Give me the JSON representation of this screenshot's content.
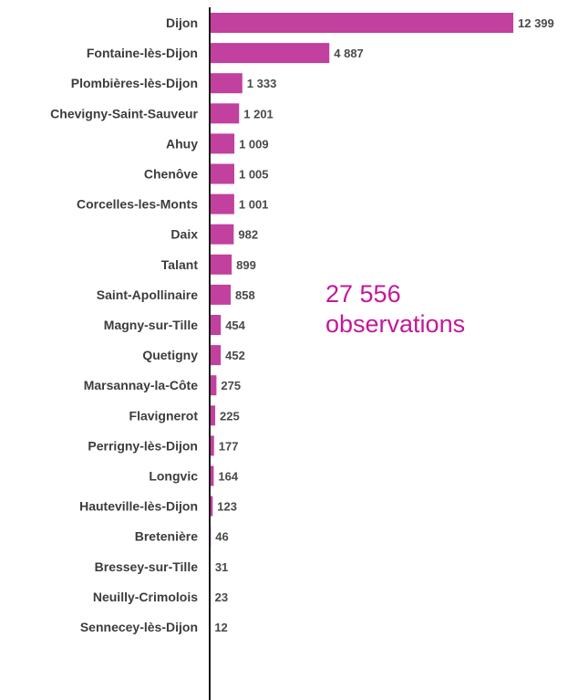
{
  "chart_data": {
    "type": "bar",
    "orientation": "horizontal",
    "categories": [
      "Dijon",
      "Fontaine-lès-Dijon",
      "Plombières-lès-Dijon",
      "Chevigny-Saint-Sauveur",
      "Ahuy",
      "Chenôve",
      "Corcelles-les-Monts",
      "Daix",
      "Talant",
      "Saint-Apollinaire",
      "Magny-sur-Tille",
      "Quetigny",
      "Marsannay-la-Côte",
      "Flavignerot",
      "Perrigny-lès-Dijon",
      "Longvic",
      "Hauteville-lès-Dijon",
      "Bretenière",
      "Bressey-sur-Tille",
      "Neuilly-Crimolois",
      "Sennecey-lès-Dijon"
    ],
    "values": [
      12399,
      4887,
      1333,
      1201,
      1009,
      1005,
      1001,
      982,
      899,
      858,
      454,
      452,
      275,
      225,
      177,
      164,
      123,
      46,
      31,
      23,
      12
    ],
    "value_labels": [
      "12 399",
      "4 887",
      "1 333",
      "1 201",
      "1 009",
      "1 005",
      "1 001",
      "982",
      "899",
      "858",
      "454",
      "452",
      "275",
      "225",
      "177",
      "164",
      "123",
      "46",
      "31",
      "23",
      "12"
    ],
    "annotation": {
      "line1": "27 556",
      "line2": "observations"
    },
    "title": "",
    "xlabel": "",
    "ylabel": "",
    "xlim": [
      0,
      12399
    ],
    "grid": false,
    "legend": "none",
    "colors": {
      "bar": "#c2409e",
      "axis": "#1a1a1a",
      "annotation": "#c3189a"
    }
  }
}
